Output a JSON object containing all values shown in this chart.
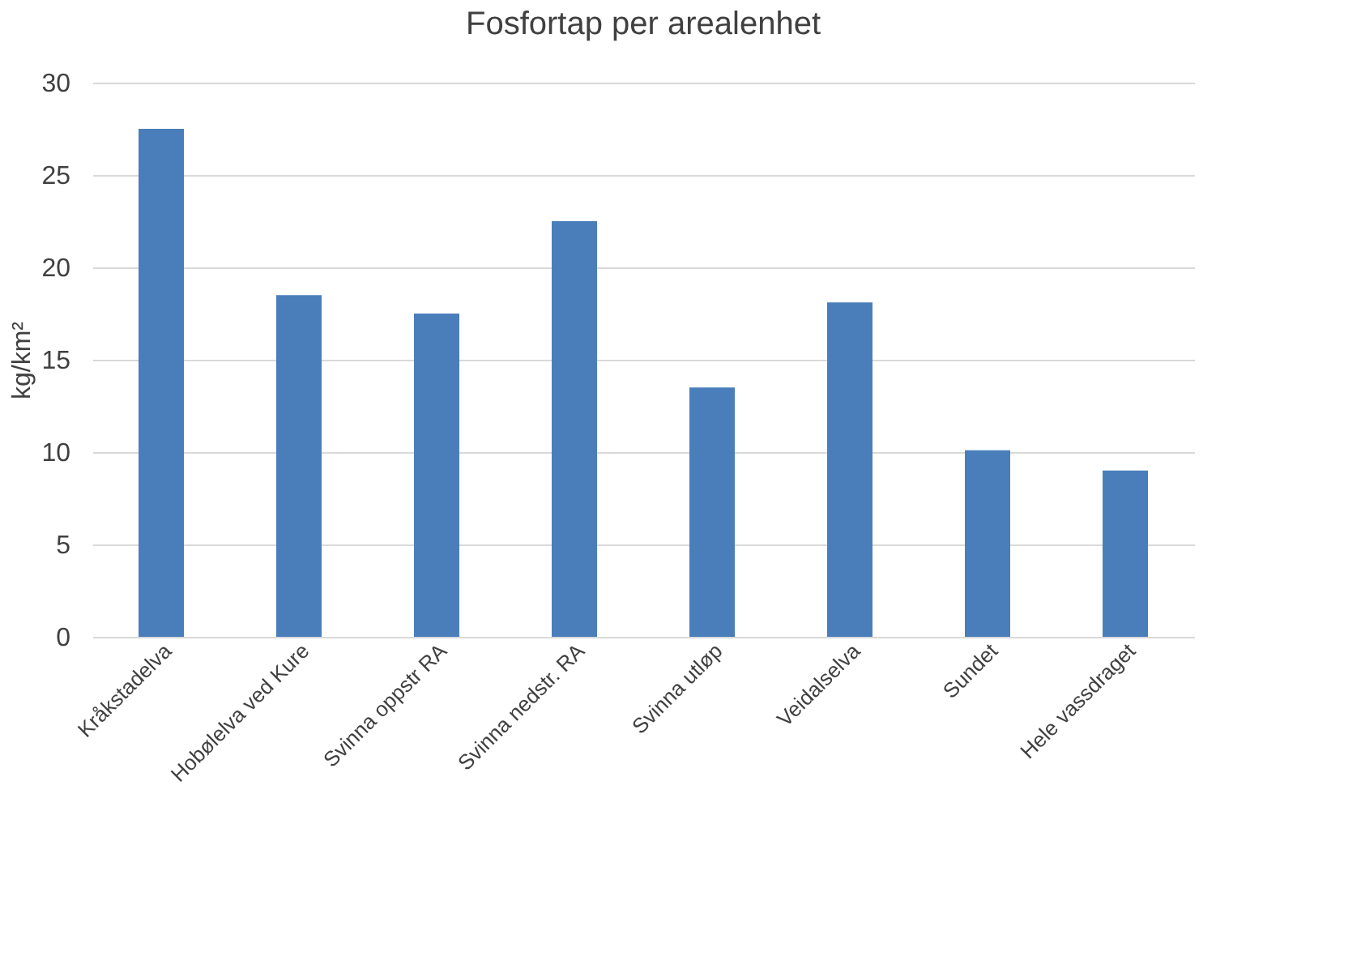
{
  "chart_data": {
    "type": "bar",
    "title": "Fosfortap per arealenhet",
    "ylabel": "kg/km²",
    "categories": [
      "Kråkstadelva",
      "Hobølelva ved Kure",
      "Svinna oppstr RA",
      "Svinna nedstr. RA",
      "Svinna utløp",
      "Veidalselva",
      "Sundet",
      "Hele vassdraget"
    ],
    "values": [
      27.5,
      18.5,
      17.5,
      22.5,
      13.5,
      18.1,
      10.1,
      9.0
    ],
    "color": "#4a7ebb",
    "ylim": [
      0,
      30
    ],
    "yticks": [
      0,
      5,
      10,
      15,
      20,
      25,
      30
    ],
    "grid": "y"
  }
}
